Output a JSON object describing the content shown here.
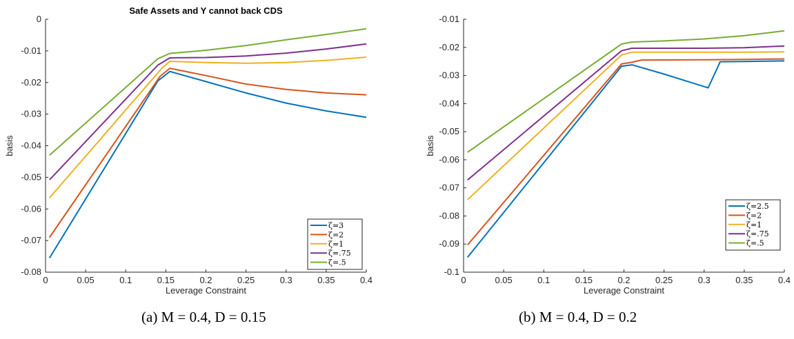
{
  "captions": [
    "(a) M = 0.4, D = 0.15",
    "(b) M = 0.4, D = 0.2"
  ],
  "chart_data": [
    {
      "type": "line",
      "title": "Safe Assets and Y cannot back CDS",
      "xlabel": "Leverage Constraint",
      "ylabel": "basis",
      "xlim": [
        0,
        0.4
      ],
      "ylim": [
        -0.08,
        0
      ],
      "xticks": [
        0,
        0.05,
        0.1,
        0.15,
        0.2,
        0.25,
        0.3,
        0.35,
        0.4
      ],
      "xtick_labels": [
        "0",
        "0.05",
        "0.1",
        "0.15",
        "0.2",
        "0.25",
        "0.3",
        "0.35",
        "0.4"
      ],
      "yticks": [
        -0.08,
        -0.07,
        -0.06,
        -0.05,
        -0.04,
        -0.03,
        -0.02,
        -0.01,
        0
      ],
      "ytick_labels": [
        "-0.08",
        "-0.07",
        "-0.06",
        "-0.05",
        "-0.04",
        "-0.03",
        "-0.02",
        "-0.01",
        "0"
      ],
      "grid": false,
      "legend_position": "bottom-right",
      "series": [
        {
          "name": "ζ=3",
          "color": "#0072BD",
          "x": [
            0.005,
            0.14,
            0.155,
            0.2,
            0.25,
            0.3,
            0.35,
            0.4
          ],
          "y": [
            -0.0755,
            -0.0195,
            -0.0165,
            -0.0197,
            -0.0233,
            -0.0265,
            -0.029,
            -0.031
          ]
        },
        {
          "name": "ζ=2",
          "color": "#D95319",
          "x": [
            0.005,
            0.143,
            0.155,
            0.2,
            0.25,
            0.3,
            0.35,
            0.4
          ],
          "y": [
            -0.069,
            -0.018,
            -0.0155,
            -0.0178,
            -0.0205,
            -0.0222,
            -0.0233,
            -0.0239
          ]
        },
        {
          "name": "ζ=1",
          "color": "#EDB120",
          "x": [
            0.005,
            0.145,
            0.155,
            0.2,
            0.25,
            0.3,
            0.35,
            0.4
          ],
          "y": [
            -0.0565,
            -0.0155,
            -0.0133,
            -0.0137,
            -0.0139,
            -0.0137,
            -0.013,
            -0.012
          ]
        },
        {
          "name": "ζ=.75",
          "color": "#7E2F8E",
          "x": [
            0.005,
            0.14,
            0.155,
            0.2,
            0.25,
            0.3,
            0.35,
            0.4
          ],
          "y": [
            -0.0508,
            -0.0145,
            -0.0122,
            -0.0121,
            -0.0116,
            -0.0107,
            -0.0094,
            -0.0078
          ]
        },
        {
          "name": "ζ=.5",
          "color": "#77AC30",
          "x": [
            0.005,
            0.14,
            0.155,
            0.2,
            0.25,
            0.3,
            0.35,
            0.4
          ],
          "y": [
            -0.043,
            -0.0125,
            -0.0108,
            -0.0098,
            -0.0083,
            -0.0065,
            -0.0048,
            -0.003
          ]
        }
      ]
    },
    {
      "type": "line",
      "title": "",
      "xlabel": "Leverage Constraint",
      "ylabel": "basis",
      "xlim": [
        0,
        0.4
      ],
      "ylim": [
        -0.1,
        -0.01
      ],
      "xticks": [
        0,
        0.05,
        0.1,
        0.15,
        0.2,
        0.25,
        0.3,
        0.35,
        0.4
      ],
      "xtick_labels": [
        "0",
        "0.05",
        "0.1",
        "0.15",
        "0.2",
        "0.25",
        "0.3",
        "0.35",
        "0.4"
      ],
      "yticks": [
        -0.1,
        -0.09,
        -0.08,
        -0.07,
        -0.06,
        -0.05,
        -0.04,
        -0.03,
        -0.02,
        -0.01
      ],
      "ytick_labels": [
        "-0.1",
        "-0.09",
        "-0.08",
        "-0.07",
        "-0.06",
        "-0.05",
        "-0.04",
        "-0.03",
        "-0.02",
        "-0.01"
      ],
      "grid": false,
      "legend_position": "right",
      "series": [
        {
          "name": "ζ=2.5",
          "color": "#0072BD",
          "x": [
            0.005,
            0.197,
            0.21,
            0.25,
            0.305,
            0.32,
            0.35,
            0.4
          ],
          "y": [
            -0.0947,
            -0.0267,
            -0.0262,
            -0.0295,
            -0.0344,
            -0.0251,
            -0.025,
            -0.0248
          ]
        },
        {
          "name": "ζ=2",
          "color": "#D95319",
          "x": [
            0.005,
            0.197,
            0.21,
            0.222,
            0.3,
            0.35,
            0.4
          ],
          "y": [
            -0.0903,
            -0.0259,
            -0.0253,
            -0.0245,
            -0.0244,
            -0.0243,
            -0.0241
          ]
        },
        {
          "name": "ζ=1",
          "color": "#EDB120",
          "x": [
            0.005,
            0.197,
            0.21,
            0.25,
            0.3,
            0.35,
            0.4
          ],
          "y": [
            -0.0742,
            -0.0227,
            -0.0217,
            -0.0217,
            -0.0217,
            -0.0217,
            -0.0216
          ]
        },
        {
          "name": "ζ=.75",
          "color": "#7E2F8E",
          "x": [
            0.005,
            0.197,
            0.21,
            0.25,
            0.3,
            0.35,
            0.4
          ],
          "y": [
            -0.0672,
            -0.0212,
            -0.0203,
            -0.0203,
            -0.0203,
            -0.0201,
            -0.0195
          ]
        },
        {
          "name": "ζ=.5",
          "color": "#77AC30",
          "x": [
            0.005,
            0.197,
            0.21,
            0.25,
            0.3,
            0.35,
            0.4
          ],
          "y": [
            -0.0573,
            -0.0188,
            -0.0181,
            -0.0177,
            -0.017,
            -0.0158,
            -0.0141
          ]
        }
      ]
    }
  ]
}
